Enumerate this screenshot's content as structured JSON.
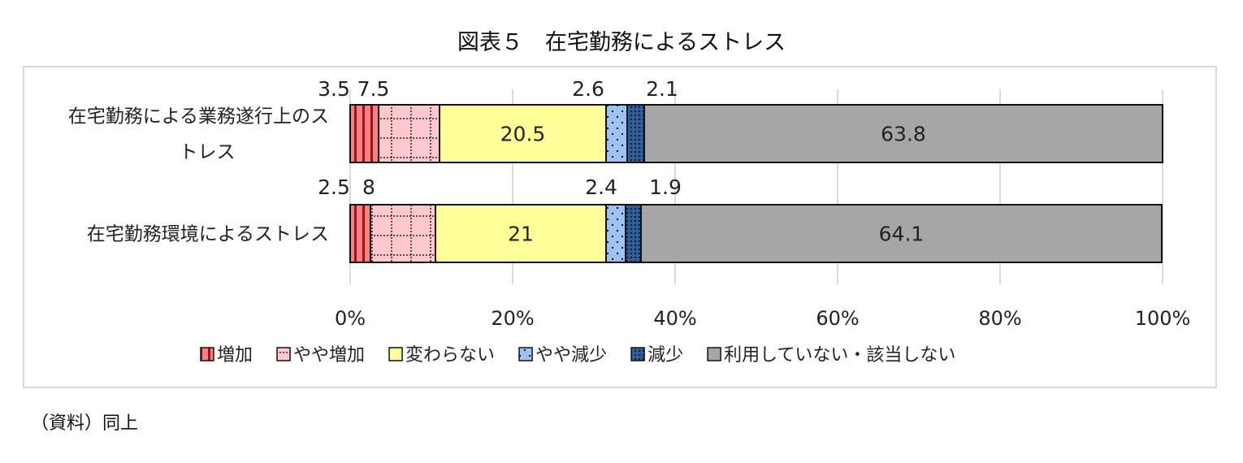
{
  "title": "図表５　在宅勤務によるストレス",
  "source": "（資料）同上",
  "chart_data": {
    "type": "bar",
    "orientation": "horizontal",
    "stacked": "percent",
    "categories": [
      "在宅勤務による業務遂行上のストレス",
      "在宅勤務環境によるストレス"
    ],
    "category_label_lines": [
      [
        "在宅勤務による業務遂行上のス",
        "トレス"
      ],
      [
        "在宅勤務環境によるストレス"
      ]
    ],
    "series": [
      {
        "name": "増加",
        "values": [
          3.5,
          2.5
        ],
        "color": "#ff7c80",
        "pattern": "vertical-stripes"
      },
      {
        "name": "やや増加",
        "values": [
          7.5,
          8
        ],
        "color": "#ffc7ce",
        "pattern": "dotted-grid"
      },
      {
        "name": "変わらない",
        "values": [
          20.5,
          21
        ],
        "color": "#ffff99",
        "pattern": "none"
      },
      {
        "name": "やや減少",
        "values": [
          2.6,
          2.4
        ],
        "color": "#9dc3f5",
        "pattern": "dots"
      },
      {
        "name": "減少",
        "values": [
          2.1,
          1.9
        ],
        "color": "#2e5f96",
        "pattern": "dense-dots"
      },
      {
        "name": "利用していない・該当しない",
        "values": [
          63.8,
          64.1
        ],
        "color": "#a6a6a6",
        "pattern": "none"
      }
    ],
    "xlim": [
      0,
      100
    ],
    "xticks": [
      "0%",
      "20%",
      "40%",
      "60%",
      "80%",
      "100%"
    ],
    "grid": true,
    "legend": "bottom"
  }
}
